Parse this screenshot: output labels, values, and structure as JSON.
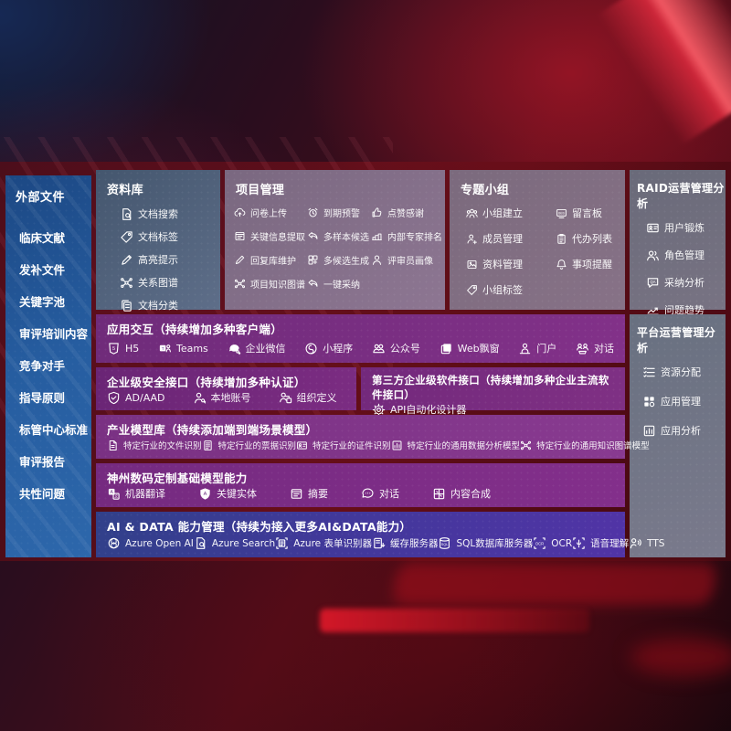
{
  "colors": {
    "sidebar_blue": "#2a63a6",
    "panel_purple": "#7c2e84",
    "ai_indigo": "#4338a0",
    "background_red": "#4c0a12"
  },
  "sidebar": {
    "title": "外部文件",
    "items": [
      {
        "label": "临床文献"
      },
      {
        "label": "发补文件"
      },
      {
        "label": "关键字池"
      },
      {
        "label": "审评培训内容"
      },
      {
        "label": "竞争对手"
      },
      {
        "label": "指导原则"
      },
      {
        "label": "标管中心标准"
      },
      {
        "label": "审评报告"
      },
      {
        "label": "共性问题"
      }
    ]
  },
  "panels": {
    "library": {
      "title": "资料库",
      "items": [
        {
          "icon": "doc-search",
          "label": "文档搜索"
        },
        {
          "icon": "tag",
          "label": "文档标签"
        },
        {
          "icon": "highlight-pen",
          "label": "高亮提示"
        },
        {
          "icon": "relation-graph",
          "label": "关系图谱"
        },
        {
          "icon": "doc-copy",
          "label": "文档分类"
        }
      ]
    },
    "project": {
      "title": "项目管理",
      "items": [
        {
          "icon": "cloud-upload",
          "label": "问卷上传"
        },
        {
          "icon": "alarm-clock",
          "label": "到期预警"
        },
        {
          "icon": "thumbs-up",
          "label": "点赞感谢"
        },
        {
          "icon": "doc-extract",
          "label": "关键信息提取"
        },
        {
          "icon": "reply-arrow",
          "label": "多样本候选"
        },
        {
          "icon": "rank-podium",
          "label": "内部专家排名"
        },
        {
          "icon": "edit-pen",
          "label": "回复库维护"
        },
        {
          "icon": "multi-generate",
          "label": "多候选生成"
        },
        {
          "icon": "person",
          "label": "评审员画像"
        },
        {
          "icon": "knowledge-graph",
          "label": "项目知识图谱"
        },
        {
          "icon": "adopt-arrow",
          "label": "一键采纳"
        }
      ]
    },
    "topics": {
      "title": "专题小组",
      "items": [
        {
          "icon": "team-group",
          "label": "小组建立"
        },
        {
          "icon": "message-board",
          "label": "留言板"
        },
        {
          "icon": "member-add",
          "label": "成员管理"
        },
        {
          "icon": "todo-clipboard",
          "label": "代办列表"
        },
        {
          "icon": "photo-album",
          "label": "资料管理"
        },
        {
          "icon": "bell",
          "label": "事项提醒"
        },
        {
          "icon": "tag",
          "label": "小组标签"
        }
      ]
    },
    "raid": {
      "title": "RAID运营管理分析",
      "items": [
        {
          "icon": "id-card",
          "label": "用户锻炼"
        },
        {
          "icon": "roles-people",
          "label": "角色管理"
        },
        {
          "icon": "qa-bubble",
          "label": "采纳分析"
        },
        {
          "icon": "trend-chart",
          "label": "问题趋势"
        }
      ]
    },
    "platform": {
      "title": "平台运营管理分析",
      "items": [
        {
          "icon": "resource-list",
          "label": "资源分配"
        },
        {
          "icon": "app-grid",
          "label": "应用管理"
        },
        {
          "icon": "chart-frame",
          "label": "应用分析"
        }
      ]
    }
  },
  "rows": {
    "interaction": {
      "title": "应用交互（持续增加多种客户端）",
      "items": [
        {
          "icon": "h5-badge",
          "label": "H5"
        },
        {
          "icon": "teams",
          "label": "Teams"
        },
        {
          "icon": "wechat-work",
          "label": "企业微信"
        },
        {
          "icon": "mini-program",
          "label": "小程序"
        },
        {
          "icon": "official-account",
          "label": "公众号"
        },
        {
          "icon": "web-window",
          "label": "Web飘窗"
        },
        {
          "icon": "portal-user",
          "label": "门户"
        },
        {
          "icon": "chat-duo",
          "label": "对话"
        }
      ]
    },
    "security": {
      "title": "企业级安全接口（持续增加多种认证）",
      "items": [
        {
          "icon": "ad-shield",
          "label": "AD/AAD"
        },
        {
          "icon": "local-account",
          "label": "本地账号"
        },
        {
          "icon": "org-define",
          "label": "组织定义"
        }
      ]
    },
    "thirdparty": {
      "title": "第三方企业级软件接口（持续增加多种企业主流软件接口）",
      "items": [
        {
          "icon": "api-gear",
          "label": "API自动化设计器"
        }
      ]
    },
    "industry": {
      "title": "产业模型库（持续添加端到端场景模型）",
      "items": [
        {
          "icon": "doc-file",
          "label": "特定行业的文件识别"
        },
        {
          "icon": "doc-lines",
          "label": "特定行业的票据识别"
        },
        {
          "icon": "id-card",
          "label": "特定行业的证件识别"
        },
        {
          "icon": "chart-frame",
          "label": "特定行业的通用数据分析模型"
        },
        {
          "icon": "relation-graph",
          "label": "特定行业的通用知识图谱模型"
        }
      ]
    },
    "foundation": {
      "title": "神州数码定制基础模型能力",
      "items": [
        {
          "icon": "translate",
          "label": "机器翻译"
        },
        {
          "icon": "shield-a",
          "label": "关键实体"
        },
        {
          "icon": "doc-extract",
          "label": "摘要"
        },
        {
          "icon": "chat-dots",
          "label": "对话"
        },
        {
          "icon": "compose-grid",
          "label": "内容合成"
        }
      ]
    },
    "aidata": {
      "title": "AI & DATA 能力管理（持续为接入更多AI&DATA能力）",
      "items": [
        {
          "icon": "openai",
          "label": "Azure Open AI"
        },
        {
          "icon": "azure-search",
          "label": "Azure Search"
        },
        {
          "icon": "form-recognizer",
          "label": "Azure 表单识别器"
        },
        {
          "icon": "cache-server",
          "label": "缓存服务器"
        },
        {
          "icon": "sql-database",
          "label": "SQL数据库服务器"
        },
        {
          "icon": "ocr-frame",
          "label": "OCR"
        },
        {
          "icon": "speech-frame",
          "label": "语音理解"
        },
        {
          "icon": "tts-voice",
          "label": "TTS"
        }
      ]
    }
  }
}
